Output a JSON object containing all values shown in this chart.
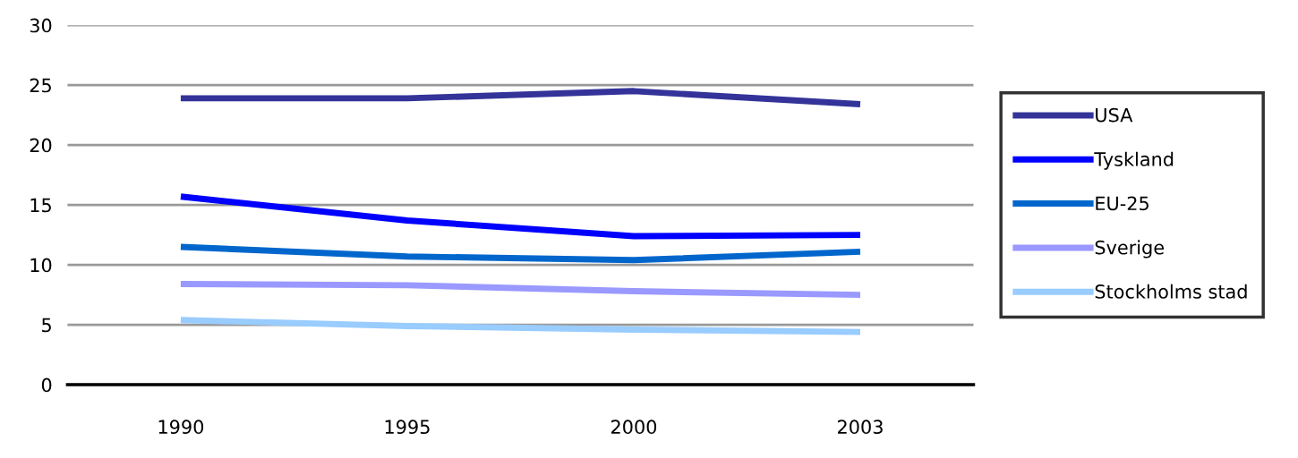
{
  "chart_data": {
    "type": "line",
    "categories": [
      "1990",
      "1995",
      "2000",
      "2003"
    ],
    "series": [
      {
        "name": "USA",
        "color": "#333399",
        "values": [
          23.9,
          23.9,
          24.5,
          23.4
        ]
      },
      {
        "name": "Tyskland",
        "color": "#0000ff",
        "values": [
          15.7,
          13.7,
          12.4,
          12.5
        ]
      },
      {
        "name": "EU-25",
        "color": "#0066cc",
        "values": [
          11.5,
          10.7,
          10.4,
          11.1
        ]
      },
      {
        "name": "Sverige",
        "color": "#9999ff",
        "values": [
          8.4,
          8.3,
          7.8,
          7.5
        ]
      },
      {
        "name": "Stockholms stad",
        "color": "#99ccff",
        "values": [
          5.4,
          4.9,
          4.6,
          4.4
        ]
      }
    ],
    "ylim": [
      0,
      30
    ],
    "yticks": [
      0,
      5,
      10,
      15,
      20,
      25,
      30
    ],
    "grid": "y",
    "legend": "right",
    "marker": "none",
    "line_style": "solid"
  }
}
